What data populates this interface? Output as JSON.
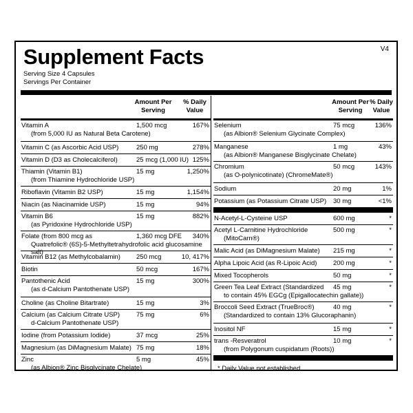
{
  "title": "Supplement Facts",
  "version": "V4",
  "serving_size": "Serving Size  4 Capsules",
  "servings_per_container": "Servings Per Container",
  "header": {
    "amount_per_serving_line1": "Amount Per",
    "amount_per_serving_line2": "Serving",
    "daily_value_line1": "% Daily",
    "daily_value_line2": "Value"
  },
  "left_rows": [
    {
      "name": "Vitamin A",
      "sub": "(from 5,000 IU as Natural Beta Carotene)",
      "amount": "1,500 mcg",
      "dv": "167%"
    },
    {
      "name": "Vitamin C (as Ascorbic Acid USP)",
      "sub": "",
      "amount": "250 mg",
      "dv": "278%"
    },
    {
      "name": "Vitamin D (D3 as Cholecalciferol)",
      "sub": "",
      "amount": "25 mcg (1,000 IU)",
      "dv": "125%"
    },
    {
      "name": "Thiamin (Vitamin B1)",
      "sub": "(from Thiamine Hydrochloride USP)",
      "amount": "15 mg",
      "dv": "1,250%"
    },
    {
      "name": "Riboflavin (Vitamin B2 USP)",
      "sub": "",
      "amount": "15 mg",
      "dv": "1,154%"
    },
    {
      "name": "Niacin (as Niacinamide USP)",
      "sub": "",
      "amount": "15 mg",
      "dv": "94%"
    },
    {
      "name": "Vitamin B6",
      "sub": "(as Pyridoxine Hydrochloride USP)",
      "amount": "15 mg",
      "dv": "882%"
    },
    {
      "name": "Folate (from 800 mcg as",
      "sub": "Quatrefolic® (6S)-5-Methyltetrahydrofolic acid glucosamine salt)",
      "amount": "1,360 mcg DFE",
      "dv": "340%"
    },
    {
      "name": "Vitamin B12 (as Methylcobalamin)",
      "sub": "",
      "amount": "250 mcg",
      "dv": "10, 417%"
    },
    {
      "name": "Biotin",
      "sub": "",
      "amount": "50 mcg",
      "dv": "167%"
    },
    {
      "name": "Pantothenic Acid",
      "sub": "(as d-Calcium Pantothenate USP)",
      "amount": "15 mg",
      "dv": "300%"
    },
    {
      "name": "Choline (as Choline Bitartrate)",
      "sub": "",
      "amount": "15 mg",
      "dv": "3%"
    },
    {
      "name": "Calcium (as Calcium Citrate USP)",
      "sub": "d-Calcium Pantothenate USP)",
      "amount": "75 mg",
      "dv": "6%"
    },
    {
      "name": "Iodine (from Potassium Iodide)",
      "sub": "",
      "amount": "37 mcg",
      "dv": "25%"
    },
    {
      "name": "Magnesium (as DiMagnesium Malate)",
      "sub": "",
      "amount": "75 mg",
      "dv": "18%"
    },
    {
      "name": "Zinc",
      "sub": "(as Albion® Zinc Bisglycinate Chelate)",
      "amount": "5 mg",
      "dv": "45%"
    }
  ],
  "right_rows_a": [
    {
      "name": "Selenium",
      "sub": "(as Albion® Selenium Glycinate Complex)",
      "amount": "75 mcg",
      "dv": "136%"
    },
    {
      "name": "Manganese",
      "sub": "(as Albion® Manganese Bisglycinate Chelate)",
      "amount": "1 mg",
      "dv": "43%"
    },
    {
      "name": "Chromium",
      "sub": "(as O-polynicotinate) (ChromeMate®)",
      "amount": "50 mcg",
      "dv": "143%"
    },
    {
      "name": "Sodium",
      "sub": "",
      "amount": "20 mg",
      "dv": "1%"
    },
    {
      "name": "Potassium (as Potassium Citrate USP)",
      "sub": "",
      "amount": "30 mg",
      "dv": "<1%"
    }
  ],
  "right_rows_b": [
    {
      "name": "N-Acetyl-L-Cysteine USP",
      "sub": "",
      "amount": "600 mg",
      "dv": "*"
    },
    {
      "name": "Acetyl L-Carnitine Hydrochloride",
      "sub": "(MitoCarn®)",
      "amount": "500 mg",
      "dv": "*"
    },
    {
      "name": "Malic Acid (as DiMagnesium Malate)",
      "sub": "",
      "amount": "215 mg",
      "dv": "*"
    },
    {
      "name": "Alpha Lipoic Acid (as R-Lipoic Acid)",
      "sub": "",
      "amount": "200 mg",
      "dv": "*"
    },
    {
      "name": "Mixed Tocopherols",
      "sub": "",
      "amount": "50 mg",
      "dv": "*"
    },
    {
      "name": "Green Tea Leaf Extract (Standardized",
      "sub": "to contain 45% EGCg (Epigallocatechin gallate))",
      "amount": "45 mg",
      "dv": "*"
    },
    {
      "name": "Broccoli Seed Extract (TrueBroc®)",
      "sub": "(Standardized to contain 13% Glucoraphanin)",
      "amount": "40 mg",
      "dv": "*"
    },
    {
      "name": "Inositol NF",
      "sub": "",
      "amount": "15 mg",
      "dv": "*"
    },
    {
      "name": "trans -Resveratrol",
      "sub": "(from Polygonum cuspidatum (Roots))",
      "amount": "10 mg",
      "dv": "*"
    }
  ],
  "footnote": "*  Daily Value not established."
}
